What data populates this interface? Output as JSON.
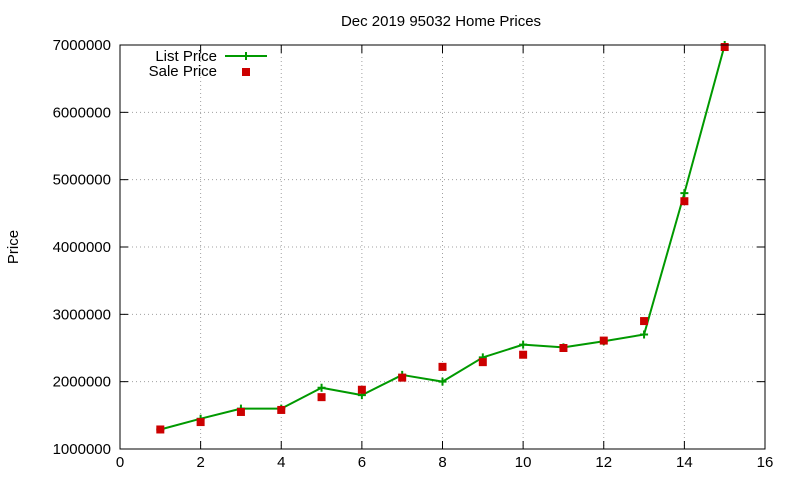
{
  "chart_data": {
    "type": "line",
    "title": "Dec 2019 95032 Home Prices",
    "xlabel": "",
    "ylabel": "Price",
    "xlim": [
      0,
      16
    ],
    "ylim": [
      1000000,
      7000000
    ],
    "xticks": [
      0,
      2,
      4,
      6,
      8,
      10,
      12,
      14,
      16
    ],
    "yticks": [
      1000000,
      2000000,
      3000000,
      4000000,
      5000000,
      6000000,
      7000000
    ],
    "grid": true,
    "legend_position": "top-left",
    "series": [
      {
        "name": "List Price",
        "style": "line-plus",
        "color": "#009900",
        "x": [
          1,
          2,
          3,
          4,
          5,
          6,
          7,
          8,
          9,
          10,
          11,
          12,
          13,
          14,
          15
        ],
        "values": [
          1290000,
          1450000,
          1600000,
          1600000,
          1910000,
          1800000,
          2100000,
          2000000,
          2360000,
          2550000,
          2510000,
          2600000,
          2700000,
          4800000,
          7000000
        ]
      },
      {
        "name": "Sale Price",
        "style": "square",
        "color": "#cc0000",
        "x": [
          1,
          2,
          3,
          4,
          5,
          6,
          7,
          8,
          9,
          10,
          11,
          12,
          13,
          14,
          15
        ],
        "values": [
          1290000,
          1400000,
          1550000,
          1580000,
          1770000,
          1880000,
          2060000,
          2220000,
          2290000,
          2400000,
          2500000,
          2610000,
          2900000,
          4680000,
          6970000
        ]
      }
    ]
  }
}
